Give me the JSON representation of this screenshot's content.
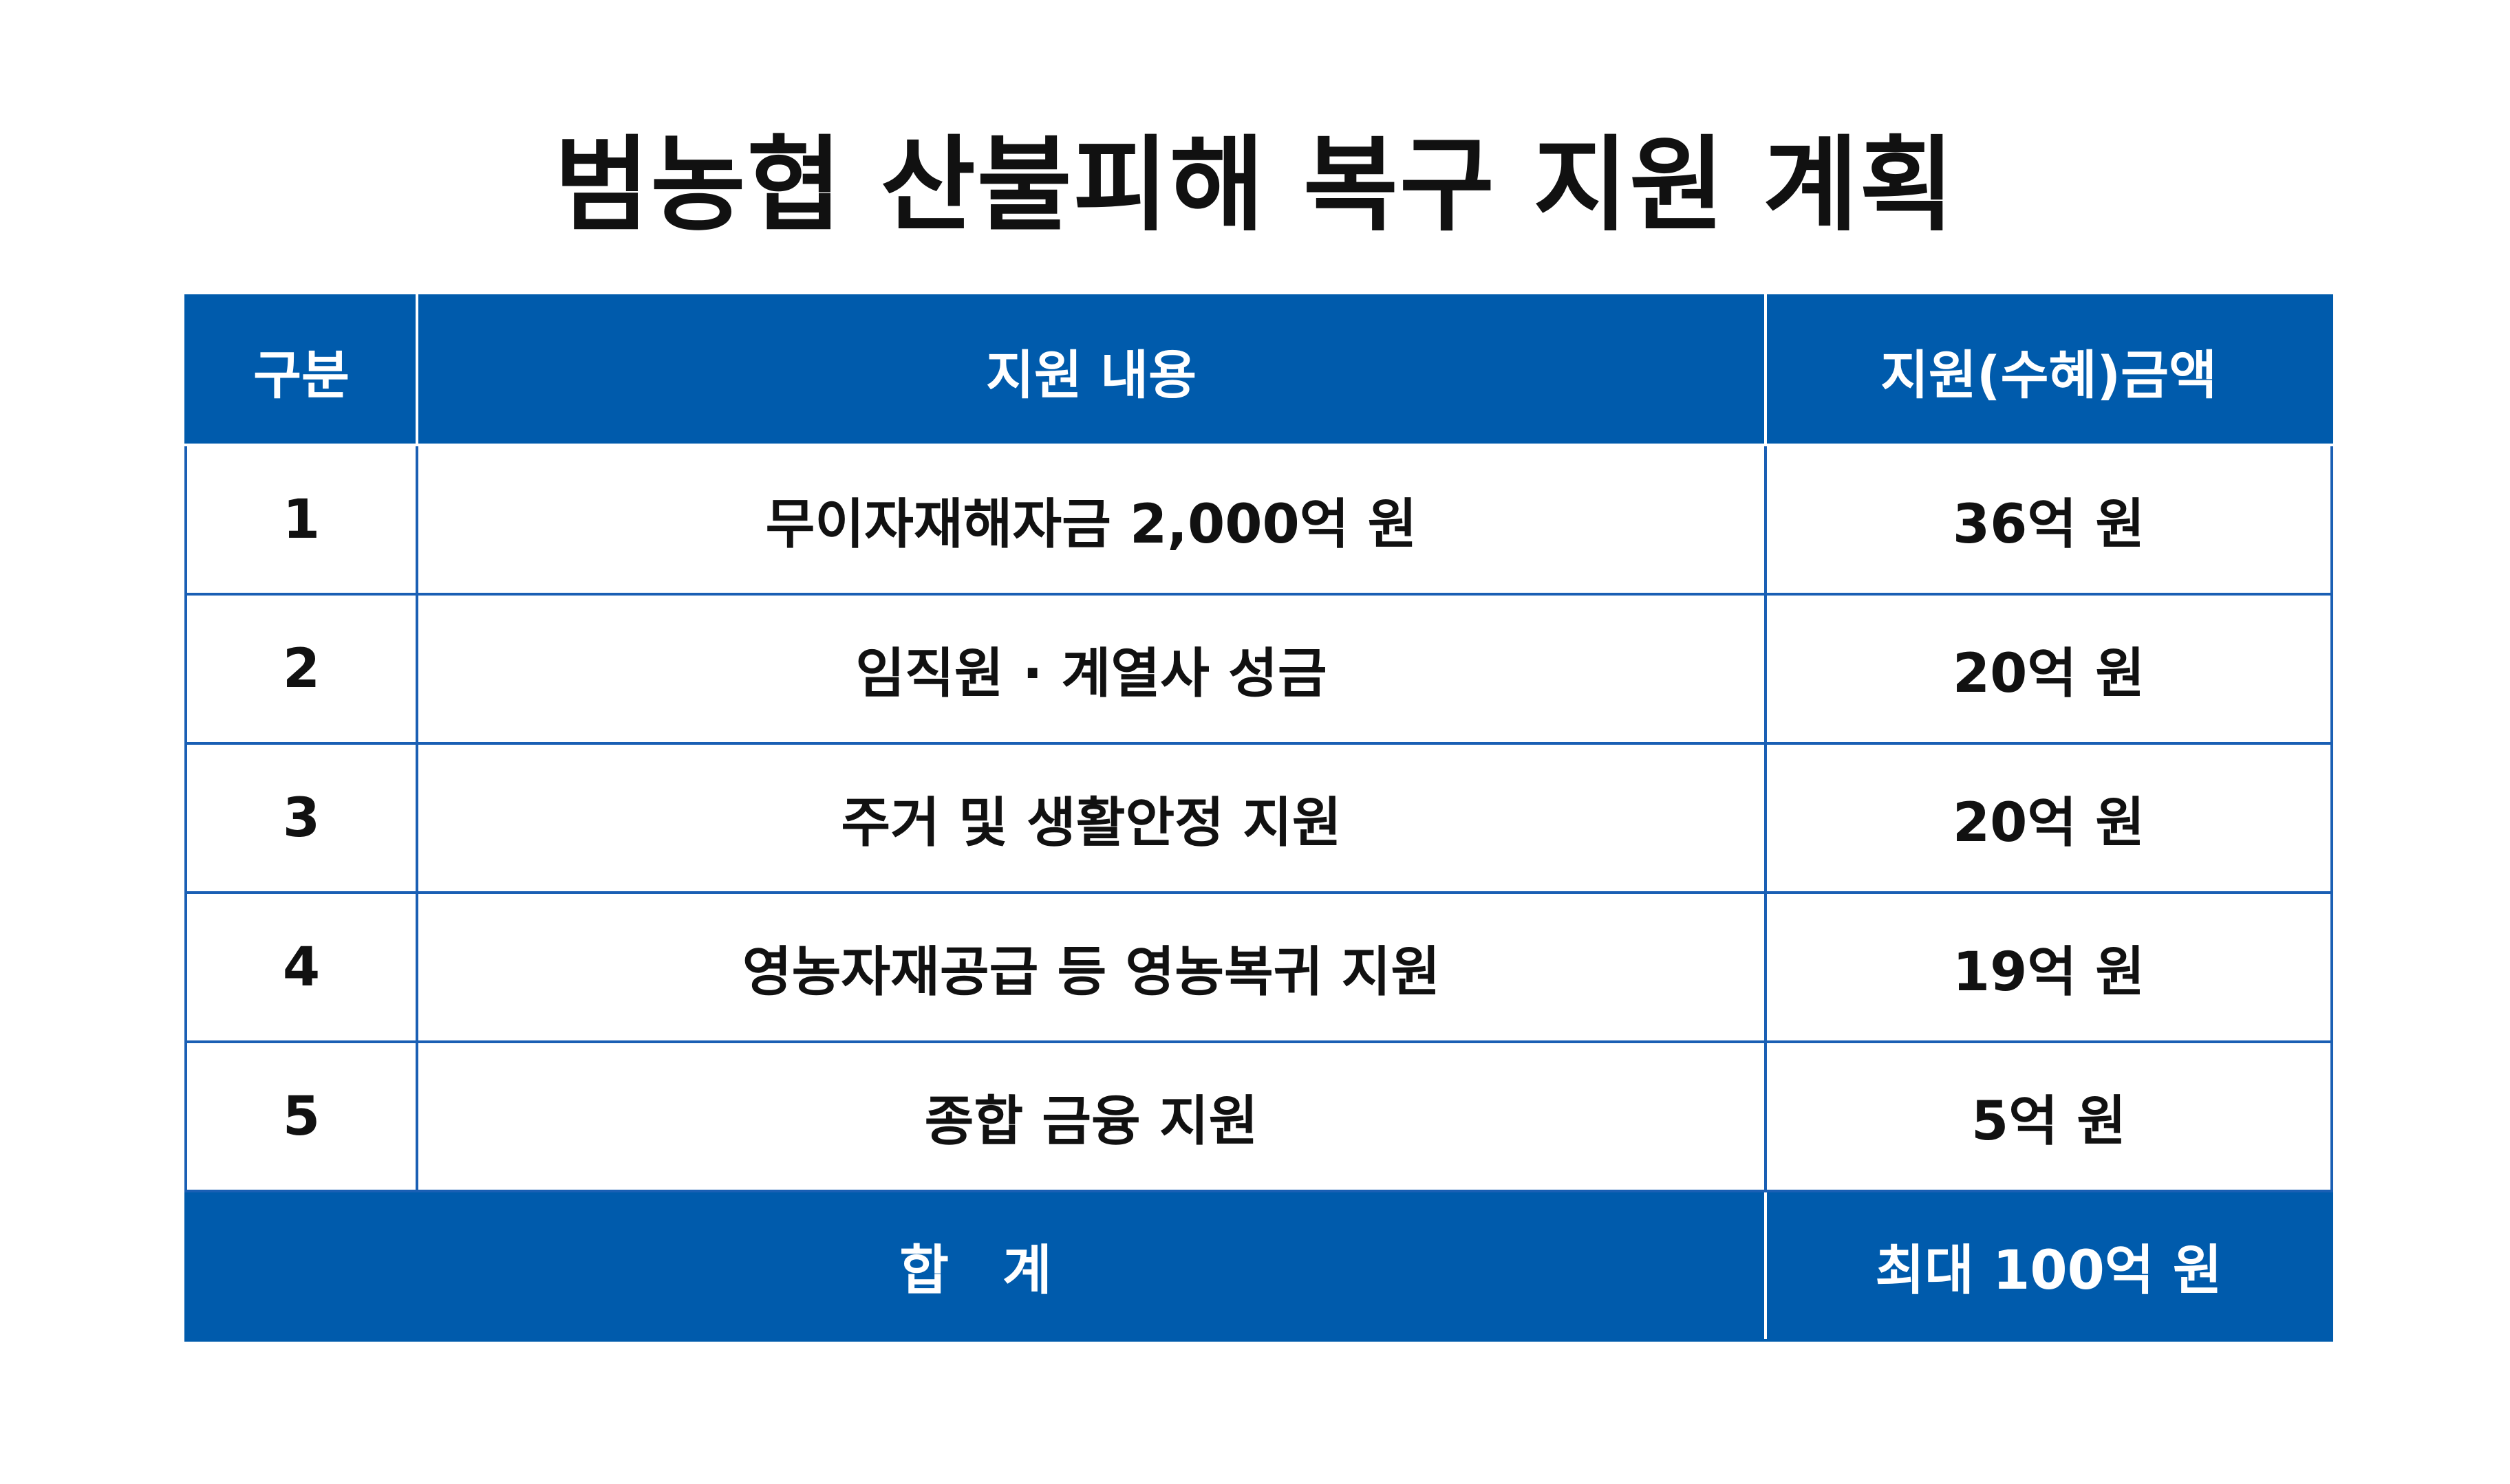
{
  "title": "범농협 산불피해 복구 지원 계획",
  "table": {
    "headers": {
      "category": "구분",
      "content": "지원 내용",
      "amount": "지원(수혜)금액"
    },
    "rows": [
      {
        "no": "1",
        "content": "무이자재해자금 2,000억 원",
        "amount": "36억 원"
      },
      {
        "no": "2",
        "content": "임직원 · 계열사 성금",
        "amount": "20억 원"
      },
      {
        "no": "3",
        "content": "주거 및 생활안정 지원",
        "amount": "20억 원"
      },
      {
        "no": "4",
        "content": "영농자재공급 등 영농복귀 지원",
        "amount": "19억 원"
      },
      {
        "no": "5",
        "content": "종합 금융 지원",
        "amount": "5억 원"
      }
    ],
    "total": {
      "label": "합　계",
      "amount": "최대 100억 원"
    }
  },
  "colors": {
    "header_bg": "#005bac",
    "border": "#1a5fb4",
    "text": "#111111"
  }
}
